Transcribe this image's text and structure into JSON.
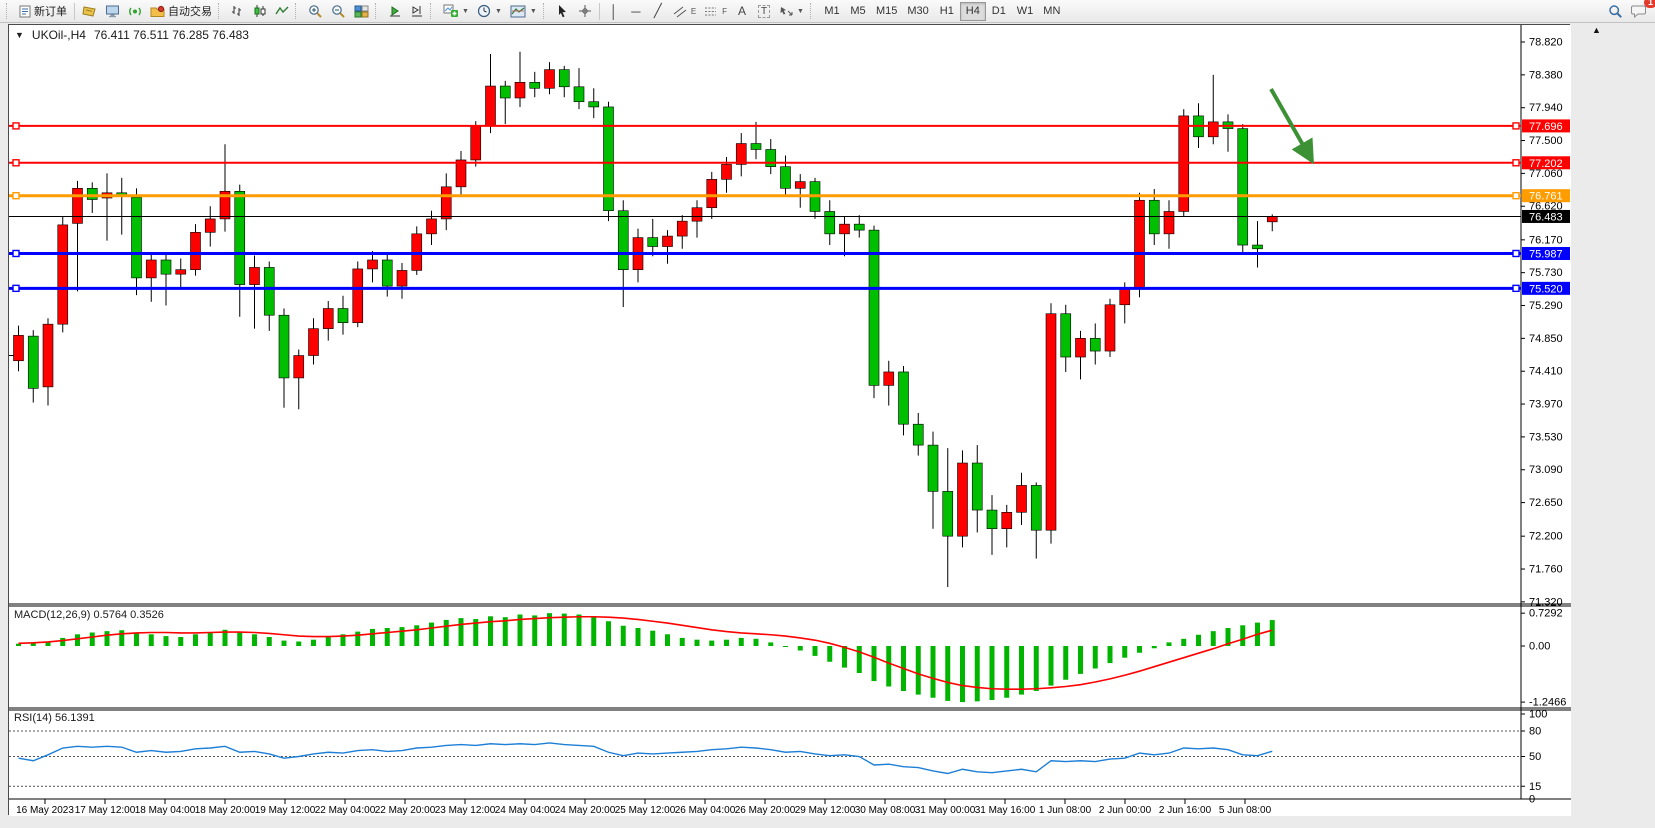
{
  "toolbar": {
    "new_order_label": "新订单",
    "auto_trading_label": "自动交易",
    "text_tool_glyph": "A",
    "label_tool_glyph": "T",
    "channel_glyph": "E",
    "fibo_glyph": "F",
    "timeframes": [
      "M1",
      "M5",
      "M15",
      "M30",
      "H1",
      "H4",
      "D1",
      "W1",
      "MN"
    ],
    "selected_timeframe": "H4",
    "notification_count": "1"
  },
  "chart": {
    "title_symbol": "UKOil-,H4",
    "title_ohlc": "76.411 76.511 76.285 76.483",
    "collapse_arrow": "▼",
    "scroll_marker": "▲",
    "current_price": "76.483",
    "price_ticks": [
      "78.820",
      "78.380",
      "77.940",
      "77.500",
      "77.060",
      "76.620",
      "76.170",
      "75.730",
      "75.290",
      "74.850",
      "74.410",
      "73.970",
      "73.530",
      "73.090",
      "72.650",
      "72.200",
      "71.760",
      "71.320"
    ],
    "hlines": [
      {
        "price": 77.696,
        "label": "77.696",
        "color": "#FF0000",
        "width": 2
      },
      {
        "price": 77.202,
        "label": "77.202",
        "color": "#FF0000",
        "width": 2
      },
      {
        "price": 76.761,
        "label": "76.761",
        "color": "#FF9C00",
        "width": 3
      },
      {
        "price": 75.987,
        "label": "75.987",
        "color": "#0000FF",
        "width": 3
      },
      {
        "price": 75.52,
        "label": "75.520",
        "color": "#0000FF",
        "width": 3
      }
    ],
    "bid_line": {
      "price": 76.483,
      "label": "76.483",
      "color": "#000000"
    },
    "colors": {
      "up": "#FF0000",
      "down": "#00BE00",
      "wick": "#000000",
      "macd_hist": "#00B400",
      "macd_signal": "#FF0000",
      "rsi_line": "#1E7FD6",
      "arrow": "#3C9135"
    }
  },
  "macd": {
    "label": "MACD(12,26,9)",
    "values_text": "0.5764 0.3526",
    "scale_max": "0.7292",
    "scale_zero": "0.00",
    "scale_min": "-1.2466"
  },
  "rsi": {
    "label": "RSI(14)",
    "value_text": "56.1391",
    "levels": [
      "100",
      "80",
      "50",
      "15",
      "0"
    ],
    "level_values": [
      100,
      80,
      50,
      15,
      0
    ],
    "dashed_levels": [
      80,
      50,
      15
    ]
  },
  "chart_data": {
    "type": "candlestick",
    "symbol": "UKOil-",
    "period": "H4",
    "time_labels": [
      "16 May 2023",
      "17 May 12:00",
      "18 May 04:00",
      "18 May 20:00",
      "19 May 12:00",
      "22 May 04:00",
      "22 May 20:00",
      "23 May 12:00",
      "24 May 04:00",
      "24 May 20:00",
      "25 May 12:00",
      "26 May 04:00",
      "26 May 20:00",
      "29 May 12:00",
      "30 May 08:00",
      "31 May 00:00",
      "31 May 16:00",
      "1 Jun 08:00",
      "2 Jun 00:00",
      "2 Jun 16:00",
      "5 Jun 08:00"
    ],
    "price_range": [
      71.32,
      78.82
    ],
    "bars_ohlc": [
      [
        74.55,
        75.02,
        74.41,
        74.89
      ],
      [
        74.88,
        74.96,
        73.99,
        74.18
      ],
      [
        74.2,
        75.12,
        73.95,
        75.04
      ],
      [
        75.04,
        76.48,
        74.93,
        76.37
      ],
      [
        76.39,
        76.96,
        75.48,
        76.86
      ],
      [
        76.86,
        76.94,
        76.53,
        76.71
      ],
      [
        76.73,
        77.06,
        76.16,
        76.8
      ],
      [
        76.8,
        77.0,
        76.24,
        76.76
      ],
      [
        76.74,
        76.86,
        75.43,
        75.66
      ],
      [
        75.66,
        75.99,
        75.34,
        75.9
      ],
      [
        75.9,
        75.97,
        75.29,
        75.71
      ],
      [
        75.71,
        75.92,
        75.52,
        75.77
      ],
      [
        75.77,
        76.38,
        75.69,
        76.27
      ],
      [
        76.27,
        76.62,
        76.08,
        76.45
      ],
      [
        76.45,
        77.45,
        76.28,
        76.82
      ],
      [
        76.82,
        76.91,
        75.14,
        75.57
      ],
      [
        75.57,
        75.96,
        74.98,
        75.8
      ],
      [
        75.8,
        75.88,
        74.95,
        75.16
      ],
      [
        75.16,
        75.25,
        73.92,
        74.32
      ],
      [
        74.32,
        74.7,
        73.9,
        74.62
      ],
      [
        74.62,
        75.12,
        74.5,
        74.98
      ],
      [
        74.98,
        75.35,
        74.82,
        75.25
      ],
      [
        75.25,
        75.42,
        74.9,
        75.06
      ],
      [
        75.06,
        75.88,
        75.0,
        75.78
      ],
      [
        75.78,
        76.02,
        75.6,
        75.9
      ],
      [
        75.9,
        76.0,
        75.41,
        75.55
      ],
      [
        75.55,
        75.86,
        75.38,
        75.76
      ],
      [
        75.76,
        76.35,
        75.7,
        76.25
      ],
      [
        76.25,
        76.56,
        76.1,
        76.45
      ],
      [
        76.45,
        77.06,
        76.3,
        76.88
      ],
      [
        76.88,
        77.36,
        76.75,
        77.24
      ],
      [
        77.24,
        77.76,
        77.15,
        77.7
      ],
      [
        77.7,
        78.66,
        77.6,
        78.23
      ],
      [
        78.23,
        78.3,
        77.72,
        78.07
      ],
      [
        78.07,
        78.69,
        77.95,
        78.28
      ],
      [
        78.28,
        78.42,
        78.08,
        78.2
      ],
      [
        78.2,
        78.55,
        78.12,
        78.45
      ],
      [
        78.45,
        78.5,
        78.08,
        78.22
      ],
      [
        78.22,
        78.47,
        77.92,
        78.02
      ],
      [
        78.02,
        78.2,
        77.8,
        77.95
      ],
      [
        77.95,
        78.02,
        76.42,
        76.56
      ],
      [
        76.56,
        76.7,
        75.27,
        75.77
      ],
      [
        75.77,
        76.32,
        75.6,
        76.2
      ],
      [
        76.2,
        76.45,
        75.95,
        76.08
      ],
      [
        76.08,
        76.3,
        75.85,
        76.22
      ],
      [
        76.22,
        76.5,
        76.05,
        76.42
      ],
      [
        76.42,
        76.7,
        76.2,
        76.6
      ],
      [
        76.6,
        77.08,
        76.45,
        76.98
      ],
      [
        76.98,
        77.28,
        76.8,
        77.18
      ],
      [
        77.18,
        77.6,
        77.02,
        77.46
      ],
      [
        77.46,
        77.75,
        77.25,
        77.38
      ],
      [
        77.38,
        77.52,
        77.05,
        77.15
      ],
      [
        77.15,
        77.3,
        76.75,
        76.86
      ],
      [
        76.86,
        77.05,
        76.6,
        76.95
      ],
      [
        76.95,
        77.0,
        76.45,
        76.55
      ],
      [
        76.55,
        76.7,
        76.1,
        76.25
      ],
      [
        76.25,
        76.48,
        75.95,
        76.38
      ],
      [
        76.38,
        76.5,
        76.2,
        76.3
      ],
      [
        76.3,
        76.36,
        74.05,
        74.22
      ],
      [
        74.22,
        74.55,
        73.95,
        74.4
      ],
      [
        74.4,
        74.48,
        73.55,
        73.7
      ],
      [
        73.7,
        73.85,
        73.28,
        73.42
      ],
      [
        73.42,
        73.6,
        72.3,
        72.8
      ],
      [
        72.8,
        73.38,
        71.52,
        72.2
      ],
      [
        72.2,
        73.35,
        72.05,
        73.18
      ],
      [
        73.18,
        73.42,
        72.25,
        72.55
      ],
      [
        72.55,
        72.75,
        71.95,
        72.3
      ],
      [
        72.3,
        72.62,
        72.05,
        72.52
      ],
      [
        72.52,
        73.05,
        72.35,
        72.88
      ],
      [
        72.88,
        72.92,
        71.9,
        72.28
      ],
      [
        72.28,
        75.32,
        72.1,
        75.18
      ],
      [
        75.18,
        75.3,
        74.4,
        74.6
      ],
      [
        74.6,
        74.95,
        74.3,
        74.85
      ],
      [
        74.85,
        75.05,
        74.5,
        74.68
      ],
      [
        74.68,
        75.38,
        74.6,
        75.3
      ],
      [
        75.3,
        75.6,
        75.05,
        75.52
      ],
      [
        75.52,
        76.8,
        75.4,
        76.7
      ],
      [
        76.7,
        76.85,
        76.1,
        76.25
      ],
      [
        76.25,
        76.7,
        76.05,
        76.55
      ],
      [
        76.55,
        77.92,
        76.48,
        77.83
      ],
      [
        77.83,
        78.0,
        77.4,
        77.55
      ],
      [
        77.55,
        78.38,
        77.45,
        77.75
      ],
      [
        77.75,
        77.85,
        77.35,
        77.66
      ],
      [
        77.66,
        77.72,
        75.98,
        76.1
      ],
      [
        76.1,
        76.42,
        75.8,
        76.05
      ],
      [
        76.411,
        76.511,
        76.285,
        76.483
      ]
    ],
    "macd_hist": [
      0.05,
      0.08,
      0.1,
      0.18,
      0.26,
      0.3,
      0.33,
      0.35,
      0.3,
      0.26,
      0.22,
      0.2,
      0.26,
      0.31,
      0.36,
      0.3,
      0.26,
      0.2,
      0.12,
      0.1,
      0.14,
      0.2,
      0.26,
      0.32,
      0.38,
      0.4,
      0.42,
      0.46,
      0.52,
      0.58,
      0.62,
      0.6,
      0.66,
      0.64,
      0.7,
      0.68,
      0.7292,
      0.72,
      0.7,
      0.66,
      0.55,
      0.45,
      0.4,
      0.34,
      0.26,
      0.18,
      0.14,
      0.12,
      0.14,
      0.18,
      0.16,
      0.08,
      -0.02,
      -0.1,
      -0.22,
      -0.35,
      -0.48,
      -0.6,
      -0.78,
      -0.9,
      -1.0,
      -1.08,
      -1.15,
      -1.22,
      -1.2466,
      -1.23,
      -1.2,
      -1.15,
      -1.08,
      -1.0,
      -0.88,
      -0.75,
      -0.62,
      -0.5,
      -0.38,
      -0.26,
      -0.15,
      -0.05,
      0.08,
      0.16,
      0.25,
      0.33,
      0.4,
      0.46,
      0.52,
      0.5764
    ],
    "macd_signal": [
      0.06,
      0.07,
      0.09,
      0.12,
      0.16,
      0.2,
      0.24,
      0.27,
      0.29,
      0.3,
      0.3,
      0.29,
      0.29,
      0.3,
      0.31,
      0.31,
      0.3,
      0.28,
      0.25,
      0.22,
      0.21,
      0.21,
      0.22,
      0.24,
      0.27,
      0.3,
      0.33,
      0.36,
      0.4,
      0.44,
      0.48,
      0.51,
      0.54,
      0.56,
      0.59,
      0.61,
      0.63,
      0.64,
      0.65,
      0.65,
      0.64,
      0.62,
      0.59,
      0.55,
      0.51,
      0.46,
      0.41,
      0.36,
      0.32,
      0.29,
      0.27,
      0.25,
      0.22,
      0.18,
      0.13,
      0.06,
      -0.03,
      -0.13,
      -0.25,
      -0.38,
      -0.5,
      -0.62,
      -0.72,
      -0.81,
      -0.88,
      -0.92,
      -0.95,
      -0.96,
      -0.96,
      -0.95,
      -0.93,
      -0.9,
      -0.86,
      -0.8,
      -0.73,
      -0.65,
      -0.56,
      -0.46,
      -0.36,
      -0.26,
      -0.16,
      -0.06,
      0.05,
      0.15,
      0.26,
      0.3526
    ],
    "rsi_values": [
      48,
      45,
      52,
      60,
      62,
      61,
      62,
      61,
      55,
      57,
      55,
      56,
      59,
      60,
      62,
      55,
      56,
      53,
      48,
      50,
      53,
      55,
      54,
      57,
      58,
      56,
      57,
      60,
      61,
      63,
      64,
      63,
      65,
      64,
      65,
      64,
      66,
      64,
      63,
      62,
      55,
      51,
      54,
      53,
      54,
      55,
      56,
      58,
      59,
      61,
      60,
      58,
      55,
      56,
      53,
      51,
      52,
      50,
      40,
      41,
      38,
      37,
      33,
      30,
      35,
      32,
      31,
      33,
      35,
      32,
      45,
      44,
      45,
      44,
      47,
      48,
      54,
      52,
      54,
      60,
      59,
      60,
      58,
      52,
      51,
      56.14
    ],
    "annotations": [
      {
        "type": "arrow",
        "from": [
          1262,
          64
        ],
        "to": [
          1302,
          134
        ],
        "color": "#3C9135"
      }
    ]
  }
}
